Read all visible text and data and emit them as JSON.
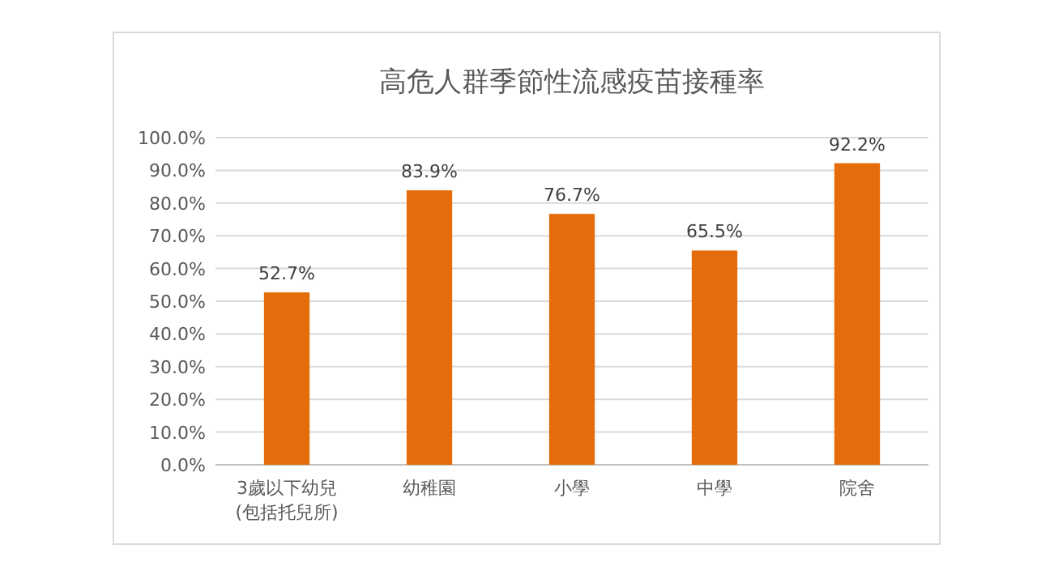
{
  "chart_data": {
    "type": "bar",
    "title": "高危人群季節性流感疫苗接種率",
    "categories": [
      "3歲以下幼兒\n(包括托兒所)",
      "幼稚園",
      "小學",
      "中學",
      "院舍"
    ],
    "values": [
      52.7,
      83.9,
      76.7,
      65.5,
      92.2
    ],
    "value_labels": [
      "52.7%",
      "83.9%",
      "76.7%",
      "65.5%",
      "92.2%"
    ],
    "color": "#e46c0a",
    "ylim": [
      0,
      100
    ],
    "yticks": [
      {
        "value": 0,
        "label": "0.0%"
      },
      {
        "value": 10,
        "label": "10.0%"
      },
      {
        "value": 20,
        "label": "20.0%"
      },
      {
        "value": 30,
        "label": "30.0%"
      },
      {
        "value": 40,
        "label": "40.0%"
      },
      {
        "value": 50,
        "label": "50.0%"
      },
      {
        "value": 60,
        "label": "60.0%"
      },
      {
        "value": 70,
        "label": "70.0%"
      },
      {
        "value": 80,
        "label": "80.0%"
      },
      {
        "value": 90,
        "label": "90.0%"
      },
      {
        "value": 100,
        "label": "100.0%"
      }
    ],
    "grid": "y"
  }
}
